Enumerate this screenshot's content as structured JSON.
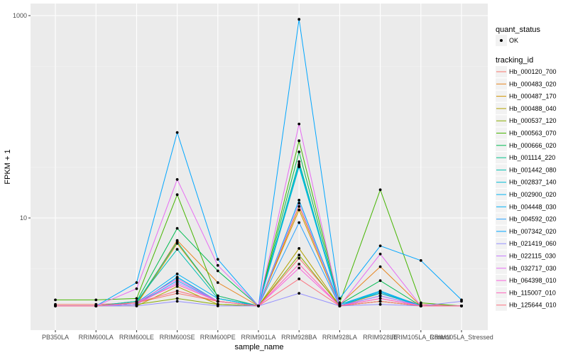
{
  "chart_data": {
    "type": "line",
    "xlabel": "sample_name",
    "ylabel": "FPKM + 1",
    "y_scale": "log10",
    "ylim": [
      1.15,
      1000
    ],
    "y_ticks": [
      {
        "value": 10,
        "label": "10"
      },
      {
        "value": 1000,
        "label": "1000"
      }
    ],
    "categories": [
      "PB350LA",
      "RRIM600LA",
      "RRIM600LE",
      "RRIM600SE",
      "RRIM600PE",
      "RRIM901LA",
      "RRIM928BA",
      "RRIM928LA",
      "RRIM928LE",
      "RRIM105LA_Control",
      "RRIM105LA_Stressed"
    ],
    "category_labels": [
      "PB350LA",
      "RRIM600LA",
      "RRIM600LE",
      "RRIM600SE",
      "RRIM600PE",
      "RRIM901LA",
      "RRIM928BA",
      "RRIM928LA",
      "RRIM928LE",
      "RRIM105LA_Control",
      "RRIM105LA_Stressed"
    ],
    "legend_quant_title": "quant_status",
    "legend_quant_label": "OK",
    "legend_series_title": "tracking_id",
    "series": [
      {
        "name": "Hb_000120_700",
        "color": "#F8766D",
        "values": [
          1.4,
          1.4,
          1.45,
          1.8,
          1.5,
          1.35,
          4.0,
          1.4,
          1.8,
          1.4,
          1.35
        ]
      },
      {
        "name": "Hb_000483_020",
        "color": "#E7851E",
        "values": [
          1.35,
          1.35,
          1.4,
          6.0,
          2.3,
          1.35,
          13.0,
          1.4,
          3.3,
          1.35,
          1.35
        ]
      },
      {
        "name": "Hb_000487_170",
        "color": "#D09400",
        "values": [
          1.35,
          1.35,
          1.4,
          5.6,
          1.7,
          1.35,
          12.0,
          1.35,
          1.8,
          1.35,
          1.35
        ]
      },
      {
        "name": "Hb_000488_040",
        "color": "#B2A100",
        "values": [
          1.35,
          1.35,
          1.35,
          2.1,
          1.4,
          1.35,
          5.0,
          1.35,
          1.5,
          1.35,
          1.35
        ]
      },
      {
        "name": "Hb_000537_120",
        "color": "#89AC00",
        "values": [
          1.35,
          1.35,
          1.4,
          1.6,
          1.4,
          1.35,
          4.3,
          1.35,
          1.5,
          1.35,
          1.35
        ]
      },
      {
        "name": "Hb_000563_070",
        "color": "#45B500",
        "values": [
          1.55,
          1.55,
          1.6,
          17.0,
          1.6,
          1.35,
          58.0,
          1.45,
          19.0,
          1.45,
          1.35
        ]
      },
      {
        "name": "Hb_000666_020",
        "color": "#00BC51",
        "values": [
          1.35,
          1.35,
          1.5,
          7.9,
          3.0,
          1.35,
          45.0,
          1.4,
          2.4,
          1.35,
          1.35
        ]
      },
      {
        "name": "Hb_001114_220",
        "color": "#00C087",
        "values": [
          1.35,
          1.35,
          1.45,
          5.8,
          1.7,
          1.35,
          36.0,
          1.35,
          1.7,
          1.35,
          1.35
        ]
      },
      {
        "name": "Hb_001442_080",
        "color": "#00C0B2",
        "values": [
          1.35,
          1.35,
          1.5,
          4.9,
          1.6,
          1.35,
          32.0,
          1.35,
          1.9,
          1.35,
          1.35
        ]
      },
      {
        "name": "Hb_002837_140",
        "color": "#00BCD6",
        "values": [
          1.35,
          1.35,
          1.4,
          2.6,
          1.5,
          1.35,
          34.0,
          1.4,
          1.8,
          1.35,
          1.35
        ]
      },
      {
        "name": "Hb_002900_020",
        "color": "#00B3F2",
        "values": [
          1.35,
          1.35,
          1.4,
          2.6,
          1.5,
          1.35,
          33.0,
          1.35,
          1.85,
          1.35,
          1.35
        ]
      },
      {
        "name": "Hb_004448_030",
        "color": "#00B0F6",
        "values": [
          1.35,
          1.35,
          1.45,
          2.8,
          1.6,
          1.35,
          15.0,
          1.4,
          1.9,
          1.35,
          1.35
        ]
      },
      {
        "name": "Hb_004592_020",
        "color": "#29A3FF",
        "values": [
          1.35,
          1.35,
          1.4,
          2.4,
          1.5,
          1.35,
          9.0,
          1.35,
          1.7,
          1.35,
          1.35
        ]
      },
      {
        "name": "Hb_007342_020",
        "color": "#00A6FF",
        "values": [
          1.35,
          1.35,
          2.3,
          70.0,
          3.9,
          1.35,
          920.0,
          1.6,
          5.3,
          3.8,
          1.55
        ]
      },
      {
        "name": "Hb_021419_060",
        "color": "#9590FF",
        "values": [
          1.35,
          1.35,
          1.35,
          1.5,
          1.35,
          1.35,
          1.8,
          1.35,
          1.4,
          1.35,
          1.5
        ]
      },
      {
        "name": "Hb_022115_030",
        "color": "#C77CFF",
        "values": [
          1.35,
          1.35,
          1.4,
          2.3,
          1.5,
          1.35,
          14.0,
          1.35,
          1.7,
          1.35,
          1.35
        ]
      },
      {
        "name": "Hb_032717_030",
        "color": "#E76BF3",
        "values": [
          1.35,
          1.35,
          2.0,
          24.0,
          3.4,
          1.35,
          85.0,
          1.35,
          4.4,
          1.35,
          1.35
        ]
      },
      {
        "name": "Hb_064398_010",
        "color": "#FA62DB",
        "values": [
          1.35,
          1.35,
          1.45,
          2.5,
          1.5,
          1.35,
          3.2,
          1.35,
          1.6,
          1.35,
          1.35
        ]
      },
      {
        "name": "Hb_115007_010",
        "color": "#FF62BC",
        "values": [
          1.35,
          1.35,
          1.45,
          2.2,
          1.5,
          1.35,
          3.5,
          1.35,
          1.6,
          1.35,
          1.35
        ]
      },
      {
        "name": "Hb_125644_010",
        "color": "#FC717F",
        "values": [
          1.35,
          1.35,
          1.45,
          1.9,
          1.5,
          1.35,
          2.5,
          1.35,
          1.5,
          1.35,
          1.35
        ]
      }
    ]
  }
}
